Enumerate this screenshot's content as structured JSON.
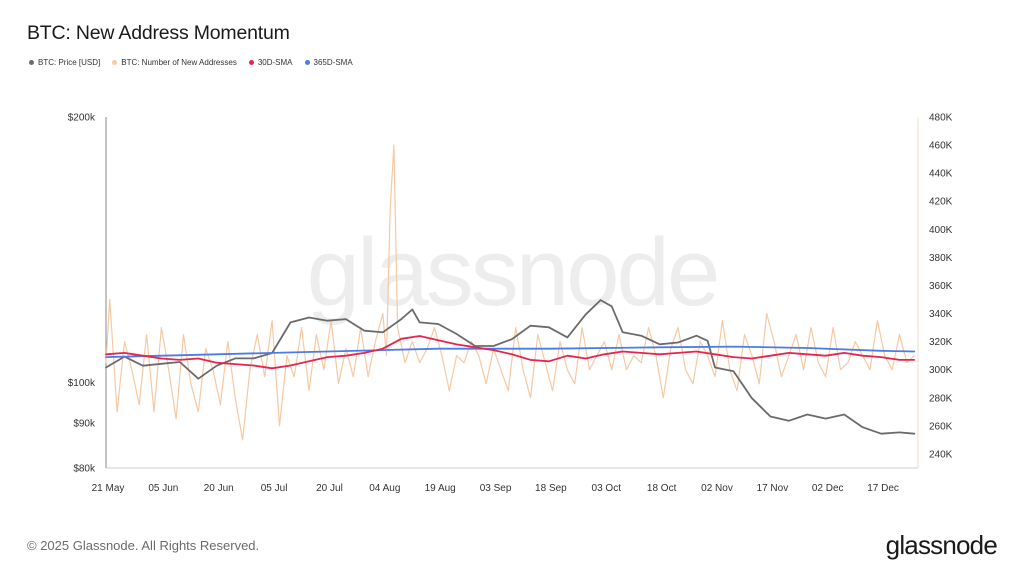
{
  "chart_data": {
    "type": "line",
    "title": "BTC: New Address Momentum",
    "x_tick_labels": [
      "21 May",
      "05 Jun",
      "20 Jun",
      "05 Jul",
      "20 Jul",
      "04 Aug",
      "19 Aug",
      "03 Sep",
      "18 Sep",
      "03 Oct",
      "18 Oct",
      "02 Nov",
      "17 Nov",
      "02 Dec",
      "17 Dec"
    ],
    "x_ticks_day_offset": [
      0,
      15,
      30,
      45,
      60,
      75,
      90,
      105,
      120,
      135,
      150,
      165,
      180,
      195,
      210
    ],
    "x_range_days": [
      0,
      220
    ],
    "left_axis": {
      "scale": "log",
      "range": [
        80000,
        200000
      ],
      "ticks": [
        80000,
        90000,
        100000,
        200000
      ],
      "tick_labels": [
        "$80k",
        "$90k",
        "$100k",
        "$200k"
      ]
    },
    "right_axis": {
      "scale": "linear",
      "range": [
        230000,
        480000
      ],
      "ticks": [
        240000,
        260000,
        280000,
        300000,
        320000,
        340000,
        360000,
        380000,
        400000,
        420000,
        440000,
        460000,
        480000
      ],
      "tick_labels": [
        "240K",
        "260K",
        "280K",
        "300K",
        "320K",
        "340K",
        "360K",
        "380K",
        "400K",
        "420K",
        "440K",
        "460K",
        "480K"
      ]
    },
    "grid": false,
    "legend_position": "top-left",
    "series": [
      {
        "name": "BTC: Price [USD]",
        "axis": "left",
        "color": "#6b6b6b",
        "points": [
          [
            0,
            104000
          ],
          [
            5,
            107000
          ],
          [
            10,
            104500
          ],
          [
            15,
            105000
          ],
          [
            20,
            105500
          ],
          [
            25,
            101000
          ],
          [
            30,
            104500
          ],
          [
            35,
            106500
          ],
          [
            40,
            106500
          ],
          [
            45,
            108000
          ],
          [
            50,
            117000
          ],
          [
            55,
            118500
          ],
          [
            60,
            117500
          ],
          [
            65,
            118000
          ],
          [
            70,
            114500
          ],
          [
            75,
            114000
          ],
          [
            80,
            118000
          ],
          [
            83,
            121000
          ],
          [
            85,
            117000
          ],
          [
            90,
            116500
          ],
          [
            95,
            113500
          ],
          [
            100,
            110000
          ],
          [
            105,
            110000
          ],
          [
            110,
            112000
          ],
          [
            115,
            116000
          ],
          [
            120,
            115500
          ],
          [
            125,
            112500
          ],
          [
            130,
            119500
          ],
          [
            134,
            124000
          ],
          [
            137,
            122000
          ],
          [
            140,
            114000
          ],
          [
            145,
            113000
          ],
          [
            150,
            110500
          ],
          [
            155,
            111000
          ],
          [
            160,
            113000
          ],
          [
            163,
            111500
          ],
          [
            165,
            104000
          ],
          [
            170,
            103000
          ],
          [
            175,
            96000
          ],
          [
            180,
            91500
          ],
          [
            185,
            90500
          ],
          [
            190,
            92000
          ],
          [
            195,
            91000
          ],
          [
            200,
            92000
          ],
          [
            205,
            89000
          ],
          [
            210,
            87500
          ],
          [
            215,
            87800
          ],
          [
            219,
            87500
          ]
        ]
      },
      {
        "name": "BTC: Number of New Addresses",
        "axis": "right",
        "color": "#f6c9a2",
        "points": [
          [
            0,
            305000
          ],
          [
            1,
            350000
          ],
          [
            3,
            270000
          ],
          [
            5,
            320000
          ],
          [
            7,
            300000
          ],
          [
            9,
            275000
          ],
          [
            11,
            325000
          ],
          [
            13,
            270000
          ],
          [
            15,
            330000
          ],
          [
            17,
            300000
          ],
          [
            19,
            265000
          ],
          [
            21,
            325000
          ],
          [
            23,
            290000
          ],
          [
            25,
            270000
          ],
          [
            27,
            315000
          ],
          [
            29,
            300000
          ],
          [
            31,
            275000
          ],
          [
            33,
            320000
          ],
          [
            35,
            280000
          ],
          [
            37,
            250000
          ],
          [
            39,
            300000
          ],
          [
            41,
            325000
          ],
          [
            43,
            295000
          ],
          [
            45,
            335000
          ],
          [
            47,
            260000
          ],
          [
            49,
            310000
          ],
          [
            51,
            295000
          ],
          [
            53,
            330000
          ],
          [
            55,
            285000
          ],
          [
            57,
            325000
          ],
          [
            59,
            300000
          ],
          [
            61,
            335000
          ],
          [
            63,
            290000
          ],
          [
            65,
            315000
          ],
          [
            67,
            295000
          ],
          [
            69,
            330000
          ],
          [
            71,
            295000
          ],
          [
            73,
            320000
          ],
          [
            75,
            340000
          ],
          [
            76,
            310000
          ],
          [
            77,
            415000
          ],
          [
            78,
            460000
          ],
          [
            79,
            330000
          ],
          [
            81,
            305000
          ],
          [
            83,
            320000
          ],
          [
            85,
            305000
          ],
          [
            87,
            315000
          ],
          [
            89,
            330000
          ],
          [
            91,
            310000
          ],
          [
            93,
            285000
          ],
          [
            95,
            310000
          ],
          [
            97,
            305000
          ],
          [
            99,
            320000
          ],
          [
            101,
            310000
          ],
          [
            103,
            290000
          ],
          [
            105,
            315000
          ],
          [
            107,
            300000
          ],
          [
            109,
            285000
          ],
          [
            111,
            330000
          ],
          [
            113,
            300000
          ],
          [
            115,
            280000
          ],
          [
            117,
            325000
          ],
          [
            119,
            305000
          ],
          [
            121,
            285000
          ],
          [
            123,
            320000
          ],
          [
            125,
            300000
          ],
          [
            127,
            290000
          ],
          [
            129,
            330000
          ],
          [
            131,
            300000
          ],
          [
            133,
            310000
          ],
          [
            135,
            320000
          ],
          [
            137,
            300000
          ],
          [
            139,
            325000
          ],
          [
            141,
            300000
          ],
          [
            143,
            310000
          ],
          [
            145,
            305000
          ],
          [
            147,
            330000
          ],
          [
            149,
            310000
          ],
          [
            151,
            280000
          ],
          [
            153,
            315000
          ],
          [
            155,
            330000
          ],
          [
            157,
            300000
          ],
          [
            159,
            290000
          ],
          [
            161,
            320000
          ],
          [
            163,
            310000
          ],
          [
            165,
            295000
          ],
          [
            167,
            335000
          ],
          [
            169,
            300000
          ],
          [
            171,
            285000
          ],
          [
            173,
            325000
          ],
          [
            175,
            310000
          ],
          [
            177,
            290000
          ],
          [
            179,
            340000
          ],
          [
            181,
            320000
          ],
          [
            183,
            295000
          ],
          [
            185,
            310000
          ],
          [
            187,
            325000
          ],
          [
            189,
            300000
          ],
          [
            191,
            330000
          ],
          [
            193,
            305000
          ],
          [
            195,
            295000
          ],
          [
            197,
            330000
          ],
          [
            199,
            300000
          ],
          [
            201,
            305000
          ],
          [
            203,
            320000
          ],
          [
            205,
            310000
          ],
          [
            207,
            300000
          ],
          [
            209,
            335000
          ],
          [
            211,
            310000
          ],
          [
            213,
            300000
          ],
          [
            215,
            325000
          ],
          [
            217,
            305000
          ],
          [
            219,
            310000
          ]
        ]
      },
      {
        "name": "30D-SMA",
        "axis": "right",
        "color": "#e8244e",
        "points": [
          [
            0,
            311000
          ],
          [
            5,
            312000
          ],
          [
            10,
            310000
          ],
          [
            15,
            308000
          ],
          [
            20,
            307000
          ],
          [
            25,
            308000
          ],
          [
            30,
            305000
          ],
          [
            35,
            304000
          ],
          [
            40,
            303000
          ],
          [
            45,
            301000
          ],
          [
            50,
            303000
          ],
          [
            55,
            306000
          ],
          [
            60,
            309000
          ],
          [
            65,
            310000
          ],
          [
            70,
            312000
          ],
          [
            75,
            315000
          ],
          [
            80,
            322000
          ],
          [
            85,
            324000
          ],
          [
            90,
            321000
          ],
          [
            95,
            318000
          ],
          [
            100,
            316000
          ],
          [
            105,
            314000
          ],
          [
            110,
            311000
          ],
          [
            115,
            307000
          ],
          [
            120,
            306000
          ],
          [
            125,
            310000
          ],
          [
            130,
            308000
          ],
          [
            135,
            311000
          ],
          [
            140,
            313000
          ],
          [
            145,
            312000
          ],
          [
            150,
            311000
          ],
          [
            155,
            312000
          ],
          [
            160,
            313000
          ],
          [
            165,
            311000
          ],
          [
            170,
            309000
          ],
          [
            175,
            308000
          ],
          [
            180,
            310000
          ],
          [
            185,
            312000
          ],
          [
            190,
            311000
          ],
          [
            195,
            310000
          ],
          [
            200,
            312000
          ],
          [
            205,
            310000
          ],
          [
            210,
            309000
          ],
          [
            215,
            307000
          ],
          [
            219,
            307000
          ]
        ]
      },
      {
        "name": "365D-SMA",
        "axis": "right",
        "color": "#4b7bec",
        "points": [
          [
            0,
            309000
          ],
          [
            30,
            311000
          ],
          [
            60,
            313000
          ],
          [
            90,
            315000
          ],
          [
            120,
            315000
          ],
          [
            150,
            316000
          ],
          [
            170,
            316500
          ],
          [
            190,
            315500
          ],
          [
            210,
            313500
          ],
          [
            219,
            313000
          ]
        ]
      }
    ]
  },
  "copyright": "© 2025 Glassnode. All Rights Reserved.",
  "brand": "glassnode",
  "watermark": "glassnode"
}
